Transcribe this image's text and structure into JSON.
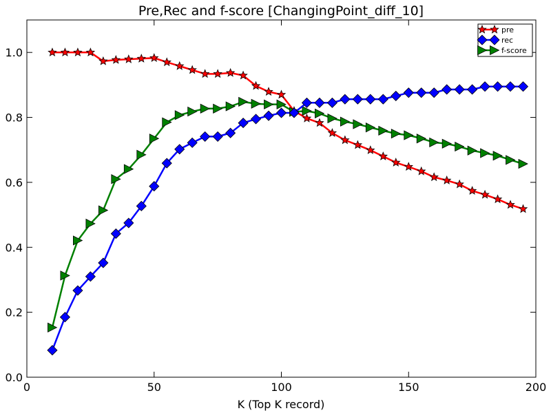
{
  "chart_data": {
    "type": "line",
    "title": "Pre,Rec and f-score [ChangingPoint_diff_10]",
    "xlabel": "K (Top K record)",
    "ylabel": "",
    "xlim": [
      0,
      200
    ],
    "ylim": [
      0.0,
      1.1
    ],
    "xticks": [
      0,
      50,
      100,
      150,
      200
    ],
    "yticks": [
      0.0,
      0.2,
      0.4,
      0.6,
      0.8,
      1.0
    ],
    "xtick_labels": [
      "0",
      "50",
      "100",
      "150",
      "200"
    ],
    "ytick_labels": [
      "0.0",
      "0.2",
      "0.4",
      "0.6",
      "0.8",
      "1.0"
    ],
    "grid": false,
    "legend_position": "top-right",
    "x": [
      10,
      15,
      20,
      25,
      30,
      35,
      40,
      45,
      50,
      55,
      60,
      65,
      70,
      75,
      80,
      85,
      90,
      95,
      100,
      105,
      110,
      115,
      120,
      125,
      130,
      135,
      140,
      145,
      150,
      155,
      160,
      165,
      170,
      175,
      180,
      185,
      190,
      195
    ],
    "series": [
      {
        "name": "pre",
        "color": "#ff0000",
        "marker": "star",
        "values": [
          1.0,
          1.0,
          1.0,
          1.0,
          0.973,
          0.977,
          0.979,
          0.981,
          0.983,
          0.97,
          0.958,
          0.946,
          0.934,
          0.934,
          0.937,
          0.929,
          0.897,
          0.879,
          0.87,
          0.82,
          0.797,
          0.783,
          0.752,
          0.73,
          0.715,
          0.699,
          0.68,
          0.661,
          0.648,
          0.634,
          0.616,
          0.606,
          0.594,
          0.574,
          0.562,
          0.548,
          0.531,
          0.518
        ]
      },
      {
        "name": "rec",
        "color": "#0000ff",
        "marker": "diamond",
        "values": [
          0.083,
          0.185,
          0.267,
          0.31,
          0.352,
          0.442,
          0.475,
          0.527,
          0.588,
          0.659,
          0.702,
          0.722,
          0.741,
          0.741,
          0.752,
          0.783,
          0.795,
          0.805,
          0.814,
          0.814,
          0.845,
          0.845,
          0.845,
          0.856,
          0.856,
          0.856,
          0.856,
          0.866,
          0.876,
          0.876,
          0.876,
          0.886,
          0.886,
          0.886,
          0.895,
          0.895,
          0.895,
          0.895
        ]
      },
      {
        "name": "f-score",
        "color": "#008000",
        "marker": "triangle-right",
        "values": [
          0.153,
          0.313,
          0.421,
          0.473,
          0.514,
          0.61,
          0.641,
          0.685,
          0.735,
          0.785,
          0.807,
          0.818,
          0.827,
          0.827,
          0.834,
          0.848,
          0.842,
          0.84,
          0.84,
          0.817,
          0.82,
          0.812,
          0.797,
          0.787,
          0.779,
          0.769,
          0.759,
          0.75,
          0.745,
          0.735,
          0.723,
          0.719,
          0.71,
          0.698,
          0.69,
          0.682,
          0.669,
          0.657
        ]
      }
    ]
  }
}
